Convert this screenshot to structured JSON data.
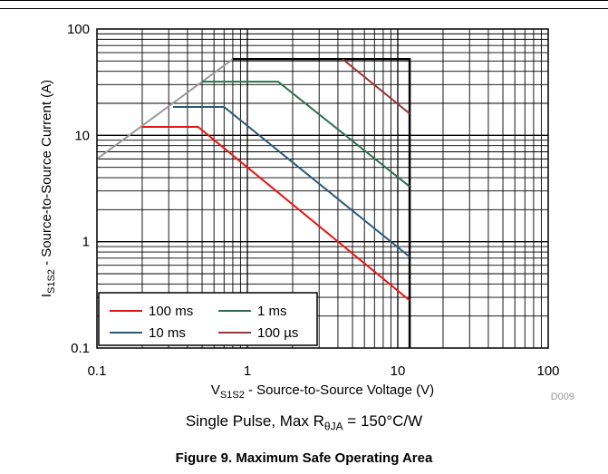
{
  "chart_data": {
    "type": "line",
    "scale": {
      "x": "log",
      "y": "log"
    },
    "xlim": [
      0.1,
      100
    ],
    "ylim": [
      0.1,
      100
    ],
    "grid": true,
    "x_ticks": [
      "0.1",
      "1",
      "10",
      "100"
    ],
    "y_ticks": [
      "100",
      "10",
      "1",
      "0.1"
    ],
    "xlabel": {
      "main": "V",
      "sub": "S1S2",
      "rest": " - Source-to-Source Voltage (V)"
    },
    "ylabel": {
      "main": "I",
      "sub": "S1S2",
      "rest": " - Source-to-Source Current (A)"
    },
    "legend_position": "bottom-left",
    "series": [
      {
        "name": "100 ms",
        "color": "#ee1111",
        "points": [
          [
            0.2,
            12
          ],
          [
            0.47,
            12
          ],
          [
            12,
            0.28
          ]
        ]
      },
      {
        "name": "1 ms",
        "color": "#2e7050",
        "points": [
          [
            0.5,
            32
          ],
          [
            1.6,
            32
          ],
          [
            12,
            3.3
          ]
        ]
      },
      {
        "name": "10 ms",
        "color": "#2a5a7a",
        "points": [
          [
            0.32,
            18.5
          ],
          [
            0.7,
            18.5
          ],
          [
            12,
            0.72
          ]
        ]
      },
      {
        "name": "100 µs",
        "color": "#9b3535",
        "points": [
          [
            4.3,
            52
          ],
          [
            12,
            16
          ]
        ]
      }
    ],
    "limit_lines": [
      {
        "role": "rds_on_limit",
        "color": "#999999",
        "points": [
          [
            0.1,
            6
          ],
          [
            0.8,
            52
          ]
        ]
      },
      {
        "role": "safe_operating_boundary",
        "color": "#000000",
        "points": [
          [
            0.8,
            52
          ],
          [
            12,
            52
          ],
          [
            12,
            0.1
          ]
        ]
      }
    ],
    "annotation": "D009"
  },
  "captions": {
    "condition_prefix": "Single Pulse, Max R",
    "condition_sub": "θJA",
    "condition_suffix": " = 150°C/W",
    "figure": "Figure 9. Maximum Safe Operating Area"
  }
}
